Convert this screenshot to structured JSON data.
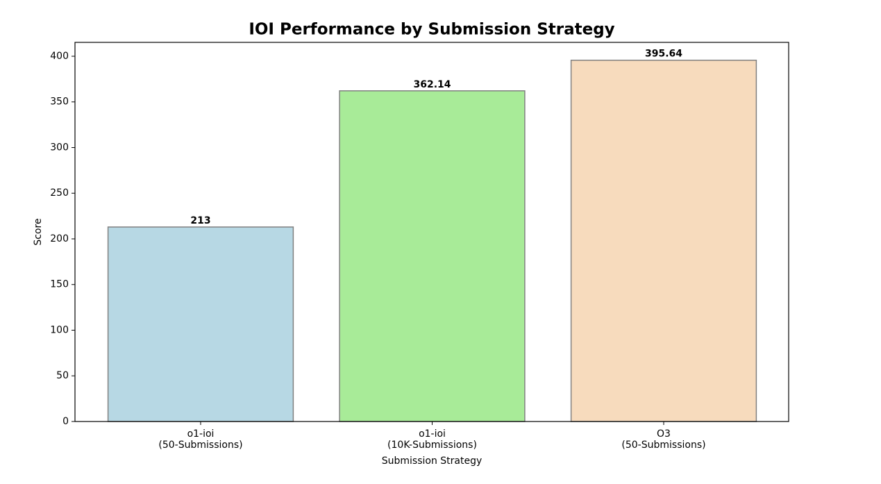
{
  "chart_data": {
    "type": "bar",
    "title": "IOI Performance by Submission Strategy",
    "xlabel": "Submission Strategy",
    "ylabel": "Score",
    "categories": [
      "o1-ioi\n(50-Submissions)",
      "o1-ioi\n(10K-Submissions)",
      "O3\n(50-Submissions)"
    ],
    "values": [
      213,
      362.14,
      395.64
    ],
    "colors": [
      "#b7d8e4",
      "#a8eb98",
      "#f7dbbd"
    ],
    "edgecolor": "#808080",
    "ylim": [
      0,
      415.2
    ],
    "yticks": [
      0,
      50,
      100,
      150,
      200,
      250,
      300,
      350,
      400
    ],
    "grid": false
  }
}
